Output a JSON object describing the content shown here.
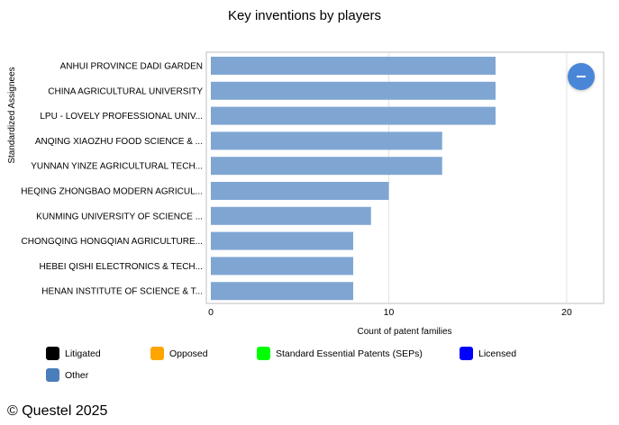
{
  "chart_data": {
    "type": "bar",
    "orientation": "horizontal",
    "title": "Key inventions by players",
    "xlabel": "Count of patent families",
    "ylabel": "Standardized Assignees",
    "categories": [
      "ANHUI PROVINCE DADI GARDEN",
      "CHINA AGRICULTURAL UNIVERSITY",
      "LPU - LOVELY PROFESSIONAL UNIV...",
      "ANQING XIAOZHU FOOD SCIENCE & ...",
      "YUNNAN YINZE AGRICULTURAL TECH...",
      "HEQING ZHONGBAO MODERN AGRICUL...",
      "KUNMING UNIVERSITY OF SCIENCE ...",
      "CHONGQING HONGQIAN AGRICULTURE...",
      "HEBEI QISHI ELECTRONICS & TECH...",
      "HENAN INSTITUTE OF SCIENCE & T..."
    ],
    "values": [
      16,
      16,
      16,
      13,
      13,
      10,
      9,
      8,
      8,
      8
    ],
    "xlim": [
      0,
      22
    ],
    "xticks": [
      0,
      10,
      20
    ],
    "grid": true,
    "bar_color": "#7fa6d3",
    "legend_placement": "bottom"
  },
  "legend": [
    {
      "label": "Litigated",
      "color": "#000000"
    },
    {
      "label": "Opposed",
      "color": "#ffa500"
    },
    {
      "label": "Standard Essential Patents (SEPs)",
      "color": "#00ff00"
    },
    {
      "label": "Licensed",
      "color": "#0000ff"
    },
    {
      "label": "Other",
      "color": "#4a7ebb"
    }
  ],
  "copyright": "© Questel 2025",
  "fab": {
    "icon": "minus-icon"
  }
}
